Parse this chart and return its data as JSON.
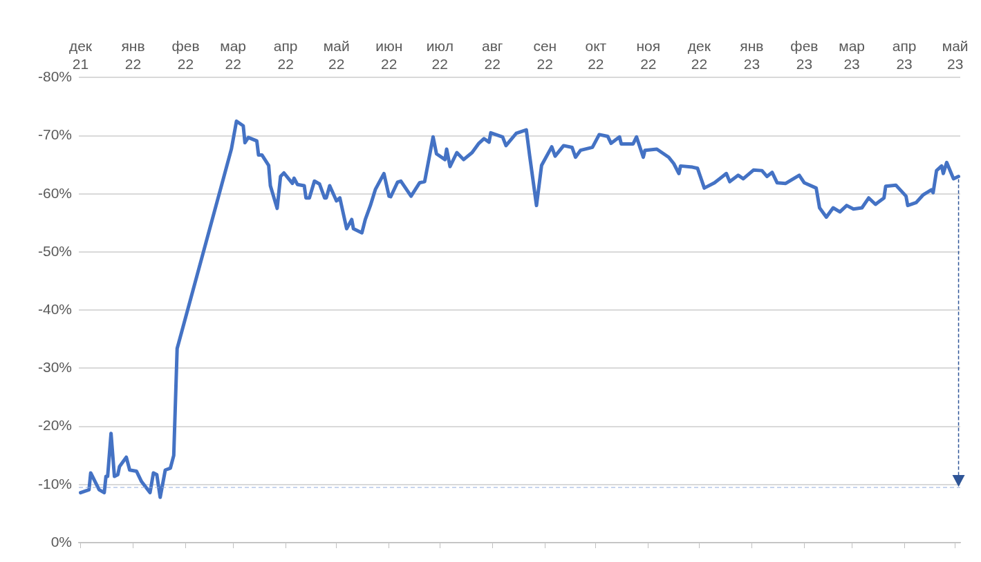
{
  "chart_data": {
    "type": "line",
    "grid": "y",
    "marker": "none",
    "line_style": "solid",
    "xlim": [
      "2021-11-30",
      "2023-05-04"
    ],
    "xticks": [
      {
        "value": "2021-12-01",
        "label": "дек 21"
      },
      {
        "value": "2022-01-01",
        "label": "янв 22"
      },
      {
        "value": "2022-02-01",
        "label": "фев 22"
      },
      {
        "value": "2022-03-01",
        "label": "мар 22"
      },
      {
        "value": "2022-04-01",
        "label": "апр 22"
      },
      {
        "value": "2022-05-01",
        "label": "май 22"
      },
      {
        "value": "2022-06-01",
        "label": "июн 22"
      },
      {
        "value": "2022-07-01",
        "label": "июл 22"
      },
      {
        "value": "2022-08-01",
        "label": "авг 22"
      },
      {
        "value": "2022-09-01",
        "label": "сен 22"
      },
      {
        "value": "2022-10-01",
        "label": "окт 22"
      },
      {
        "value": "2022-11-01",
        "label": "ноя 22"
      },
      {
        "value": "2022-12-01",
        "label": "дек 22"
      },
      {
        "value": "2023-01-01",
        "label": "янв 23"
      },
      {
        "value": "2023-02-01",
        "label": "фев 23"
      },
      {
        "value": "2023-03-01",
        "label": "мар 23"
      },
      {
        "value": "2023-04-01",
        "label": "апр 23"
      },
      {
        "value": "2023-05-01",
        "label": "май 23"
      }
    ],
    "ylim": [
      0,
      -80
    ],
    "yticks": [
      {
        "value": 0,
        "label": "0%"
      },
      {
        "value": -10,
        "label": "-10%"
      },
      {
        "value": -20,
        "label": "-20%"
      },
      {
        "value": -30,
        "label": "-30%"
      },
      {
        "value": -40,
        "label": "-40%"
      },
      {
        "value": -50,
        "label": "-50%"
      },
      {
        "value": -60,
        "label": "-60%"
      },
      {
        "value": -70,
        "label": "-70%"
      },
      {
        "value": -80,
        "label": "-80%"
      }
    ],
    "ref_lines": [
      {
        "axis": "y",
        "value": -9.5,
        "color": "#8faadc",
        "line_style": "dashed"
      }
    ],
    "x": [
      "2021-12-01",
      "2021-12-06",
      "2021-12-07",
      "2021-12-12",
      "2021-12-15",
      "2021-12-16",
      "2021-12-17",
      "2021-12-19",
      "2021-12-21",
      "2021-12-23",
      "2021-12-24",
      "2021-12-28",
      "2021-12-30",
      "2022-01-03",
      "2022-01-06",
      "2022-01-11",
      "2022-01-13",
      "2022-01-15",
      "2022-01-17",
      "2022-01-20",
      "2022-01-23",
      "2022-01-25",
      "2022-01-27",
      "2022-02-28",
      "2022-03-03",
      "2022-03-07",
      "2022-03-08",
      "2022-03-10",
      "2022-03-15",
      "2022-03-16",
      "2022-03-18",
      "2022-03-22",
      "2022-03-23",
      "2022-03-27",
      "2022-03-29",
      "2022-03-31",
      "2022-04-05",
      "2022-04-06",
      "2022-04-08",
      "2022-04-12",
      "2022-04-13",
      "2022-04-15",
      "2022-04-18",
      "2022-04-21",
      "2022-04-24",
      "2022-04-25",
      "2022-04-27",
      "2022-04-29",
      "2022-05-01",
      "2022-05-03",
      "2022-05-07",
      "2022-05-10",
      "2022-05-11",
      "2022-05-16",
      "2022-05-18",
      "2022-05-21",
      "2022-05-24",
      "2022-05-29",
      "2022-06-01",
      "2022-06-02",
      "2022-06-06",
      "2022-06-08",
      "2022-06-14",
      "2022-06-19",
      "2022-06-22",
      "2022-06-27",
      "2022-06-29",
      "2022-07-04",
      "2022-07-05",
      "2022-07-07",
      "2022-07-11",
      "2022-07-15",
      "2022-07-20",
      "2022-07-24",
      "2022-07-27",
      "2022-07-30",
      "2022-07-31",
      "2022-08-07",
      "2022-08-09",
      "2022-08-15",
      "2022-08-21",
      "2022-08-23",
      "2022-08-27",
      "2022-08-30",
      "2022-09-05",
      "2022-09-07",
      "2022-09-12",
      "2022-09-17",
      "2022-09-19",
      "2022-09-22",
      "2022-09-29",
      "2022-10-03",
      "2022-10-08",
      "2022-10-10",
      "2022-10-15",
      "2022-10-16",
      "2022-10-23",
      "2022-10-25",
      "2022-10-29",
      "2022-10-30",
      "2022-11-06",
      "2022-11-13",
      "2022-11-16",
      "2022-11-19",
      "2022-11-20",
      "2022-11-27",
      "2022-11-30",
      "2022-12-04",
      "2022-12-10",
      "2022-12-17",
      "2022-12-19",
      "2022-12-24",
      "2022-12-27",
      "2023-01-02",
      "2023-01-07",
      "2023-01-10",
      "2023-01-13",
      "2023-01-16",
      "2023-01-21",
      "2023-01-29",
      "2023-02-01",
      "2023-02-08",
      "2023-02-10",
      "2023-02-14",
      "2023-02-18",
      "2023-02-22",
      "2023-02-26",
      "2023-03-02",
      "2023-03-07",
      "2023-03-11",
      "2023-03-15",
      "2023-03-20",
      "2023-03-21",
      "2023-03-27",
      "2023-04-02",
      "2023-04-03",
      "2023-04-08",
      "2023-04-12",
      "2023-04-17",
      "2023-04-18",
      "2023-04-20",
      "2023-04-23",
      "2023-04-24",
      "2023-04-26",
      "2023-04-30",
      "2023-05-03"
    ],
    "series": [
      {
        "color": "#4472c4",
        "values": [
          -8.6,
          -9.1,
          -12.0,
          -9.1,
          -8.6,
          -11.4,
          -11.4,
          -18.8,
          -11.4,
          -11.7,
          -13.1,
          -14.7,
          -12.5,
          -12.3,
          -10.5,
          -8.6,
          -12.0,
          -11.7,
          -7.8,
          -12.5,
          -12.8,
          -15.0,
          -33.4,
          -67.7,
          -72.5,
          -71.7,
          -68.8,
          -69.7,
          -69.1,
          -66.7,
          -66.7,
          -64.9,
          -61.4,
          -57.5,
          -63.0,
          -63.6,
          -61.8,
          -62.7,
          -61.6,
          -61.4,
          -59.3,
          -59.3,
          -62.2,
          -61.7,
          -59.3,
          -59.3,
          -61.4,
          -60.1,
          -58.8,
          -59.3,
          -54.0,
          -55.6,
          -54.0,
          -53.3,
          -55.6,
          -58.0,
          -60.8,
          -63.5,
          -59.6,
          -59.5,
          -62.0,
          -62.2,
          -59.6,
          -61.9,
          -62.1,
          -69.8,
          -66.9,
          -65.9,
          -67.7,
          -64.7,
          -67.1,
          -65.9,
          -67.1,
          -68.7,
          -69.5,
          -68.9,
          -70.5,
          -69.8,
          -68.3,
          -70.4,
          -71.0,
          -66.5,
          -58.0,
          -64.9,
          -68.1,
          -66.5,
          -68.3,
          -68.0,
          -66.3,
          -67.5,
          -68.0,
          -70.2,
          -69.9,
          -68.7,
          -69.8,
          -68.6,
          -68.6,
          -69.8,
          -66.3,
          -67.5,
          -67.7,
          -66.3,
          -65.2,
          -63.5,
          -64.8,
          -64.6,
          -64.4,
          -61.0,
          -61.9,
          -63.5,
          -62.1,
          -63.2,
          -62.6,
          -64.1,
          -64.0,
          -63.0,
          -63.7,
          -61.9,
          -61.8,
          -63.2,
          -61.9,
          -61.0,
          -57.6,
          -56.0,
          -57.6,
          -56.9,
          -58.0,
          -57.4,
          -57.6,
          -59.3,
          -58.2,
          -59.3,
          -61.3,
          -61.5,
          -59.6,
          -58.0,
          -58.5,
          -59.8,
          -60.7,
          -60.2,
          -64.0,
          -64.8,
          -63.5,
          -65.4,
          -62.6,
          -63.0
        ]
      }
    ]
  }
}
